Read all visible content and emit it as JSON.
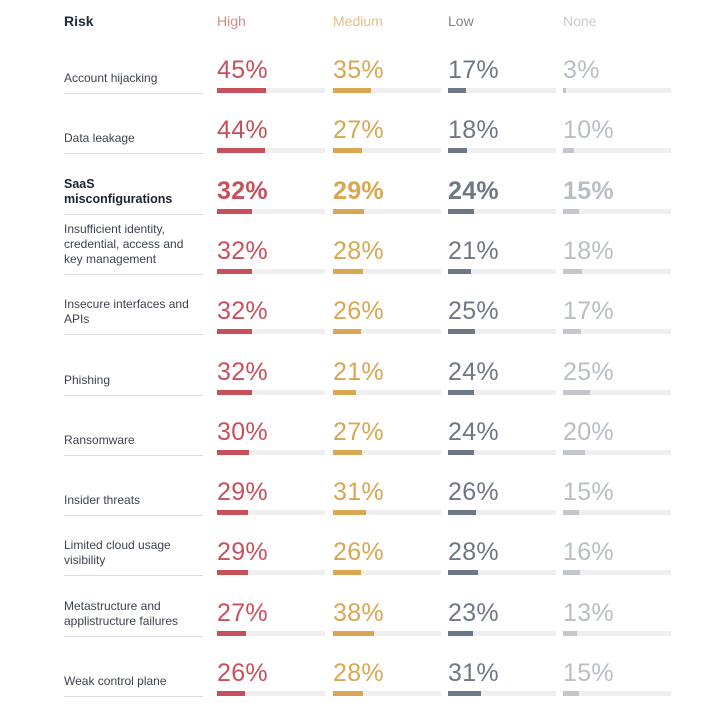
{
  "chart_data": {
    "type": "table",
    "row_header": "Risk",
    "columns": [
      {
        "name": "High",
        "color": "#c8505a",
        "header_color": "#e08a88"
      },
      {
        "name": "Medium",
        "color": "#d9a651",
        "header_color": "#e5bf88"
      },
      {
        "name": "Low",
        "color": "#6d7785",
        "header_color": "#7c8491"
      },
      {
        "name": "None",
        "color": "#c3c7cd",
        "header_color": "#c8ccd2"
      }
    ],
    "rows": [
      {
        "risk": "Account hijacking",
        "values": [
          45,
          35,
          17,
          3
        ],
        "highlight": false
      },
      {
        "risk": "Data leakage",
        "values": [
          44,
          27,
          18,
          10
        ],
        "highlight": false
      },
      {
        "risk": "SaaS misconfigurations",
        "values": [
          32,
          29,
          24,
          15
        ],
        "highlight": true
      },
      {
        "risk": "Insufficient identity, credential, access and key management",
        "values": [
          32,
          28,
          21,
          18
        ],
        "highlight": false
      },
      {
        "risk": "Insecure interfaces and APIs",
        "values": [
          32,
          26,
          25,
          17
        ],
        "highlight": false
      },
      {
        "risk": "Phishing",
        "values": [
          32,
          21,
          24,
          25
        ],
        "highlight": false
      },
      {
        "risk": "Ransomware",
        "values": [
          30,
          27,
          24,
          20
        ],
        "highlight": false
      },
      {
        "risk": "Insider threats",
        "values": [
          29,
          31,
          26,
          15
        ],
        "highlight": false
      },
      {
        "risk": "Limited cloud usage visibility",
        "values": [
          29,
          26,
          28,
          16
        ],
        "highlight": false
      },
      {
        "risk": "Metastructure and applistructure failures",
        "values": [
          27,
          38,
          23,
          13
        ],
        "highlight": false
      },
      {
        "risk": "Weak control plane",
        "values": [
          26,
          28,
          31,
          15
        ],
        "highlight": false
      }
    ],
    "value_suffix": "%",
    "bar_scale_max": 100
  }
}
